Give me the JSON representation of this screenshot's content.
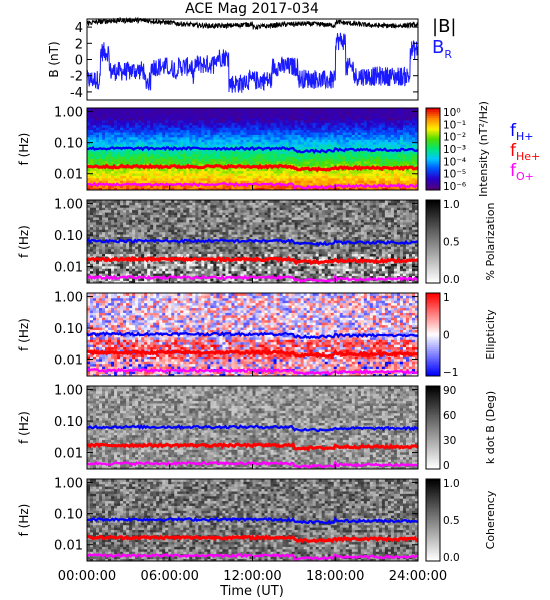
{
  "title": "ACE Mag 2017-034",
  "chart_data": {
    "type": "multi-panel spectrogram",
    "x_axis": {
      "label": "Time (UT)",
      "ticks": [
        "00:00:00",
        "06:00:00",
        "12:00:00",
        "18:00:00",
        "24:00:00"
      ],
      "range_hours": [
        0,
        24
      ]
    },
    "line_panel": {
      "ylabel": "B (nT)",
      "y_ticks": [
        "4",
        "2",
        "0",
        "-2",
        "-4"
      ],
      "ylim": [
        -5,
        5
      ],
      "series": [
        {
          "name": "|B|",
          "color": "#000000",
          "level": 4.5
        },
        {
          "name": "B_R",
          "color": "#1a1aff",
          "range": [
            -4.3,
            4.3
          ]
        }
      ]
    },
    "frequency_axis": {
      "label": "f (Hz)",
      "ticks": [
        "1.00",
        "0.10",
        "0.01"
      ],
      "scale": "log",
      "range_hz": [
        0.003,
        1.3
      ]
    },
    "gyrofrequency_lines": [
      {
        "name": "f_H+",
        "color": "#0000ff",
        "approx_hz": 0.065
      },
      {
        "name": "f_He+",
        "color": "#ff0000",
        "approx_hz": 0.017
      },
      {
        "name": "f_O+",
        "color": "#ff00ff",
        "approx_hz": 0.0045
      }
    ],
    "spectrogram_panels": [
      {
        "id": "intensity",
        "colorbar_label": "Intensity (nT²/Hz)",
        "colormap": "rainbow",
        "ticks": [
          "10⁰",
          "10⁻¹",
          "10⁻²",
          "10⁻³",
          "10⁻⁴",
          "10⁻⁵",
          "10⁻⁶"
        ]
      },
      {
        "id": "polarization",
        "colorbar_label": "% Polarization",
        "colormap": "gray",
        "ticks": [
          "1.0",
          "0.5",
          "0.0"
        ]
      },
      {
        "id": "ellipticity",
        "colorbar_label": "Ellipticity",
        "colormap": "bwr",
        "ticks": [
          "1",
          "0",
          "−1"
        ]
      },
      {
        "id": "kdotb",
        "colorbar_label": "k dot B (Deg)",
        "colormap": "gray",
        "ticks": [
          "90",
          "60",
          "30",
          "0"
        ]
      },
      {
        "id": "coherency",
        "colorbar_label": "Coherency",
        "colormap": "gray",
        "ticks": [
          "1.0",
          "0.5",
          "0.0"
        ]
      }
    ]
  }
}
